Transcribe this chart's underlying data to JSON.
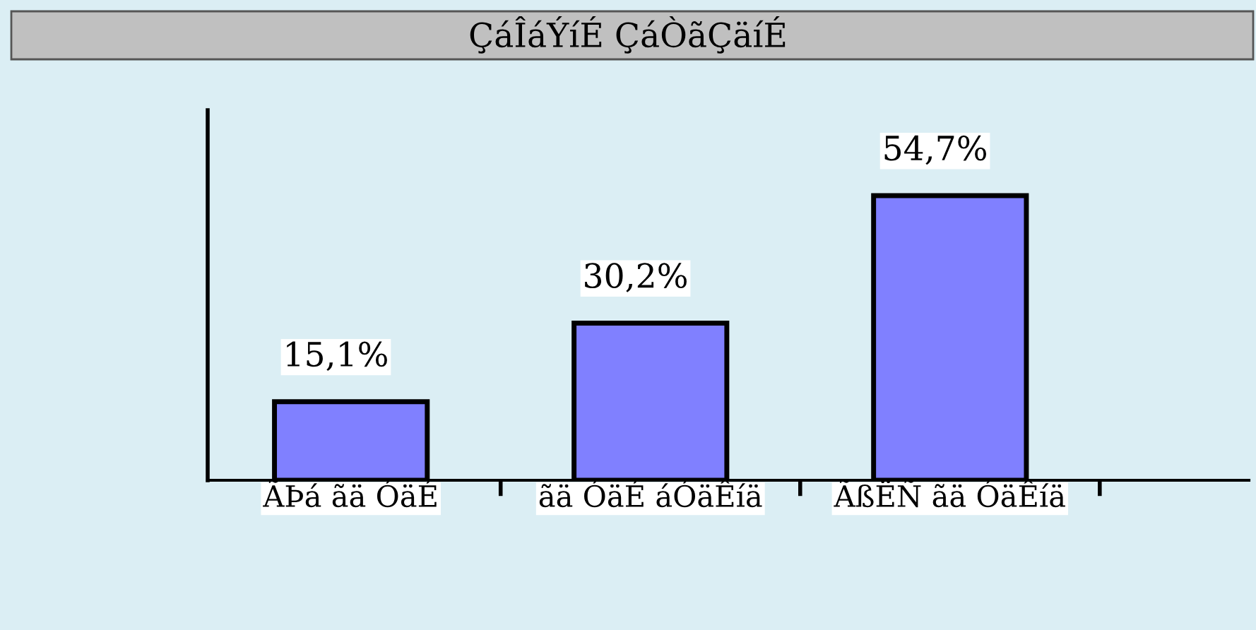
{
  "chart_data": {
    "type": "bar",
    "title": "ÇáÎáÝíÉ ÇáÒãÇäíÉ",
    "categories": [
      "ÃÞá ãä ÓäÉ",
      "ãä ÓäÉ áÓäÊíä",
      "ÃßËÑ ãä ÓäÊíä"
    ],
    "values": [
      15.1,
      30.2,
      54.7
    ],
    "value_labels": [
      "15,1%",
      "30,2%",
      "54,7%"
    ],
    "color": "#8080ff",
    "grid": false,
    "legend": false
  }
}
